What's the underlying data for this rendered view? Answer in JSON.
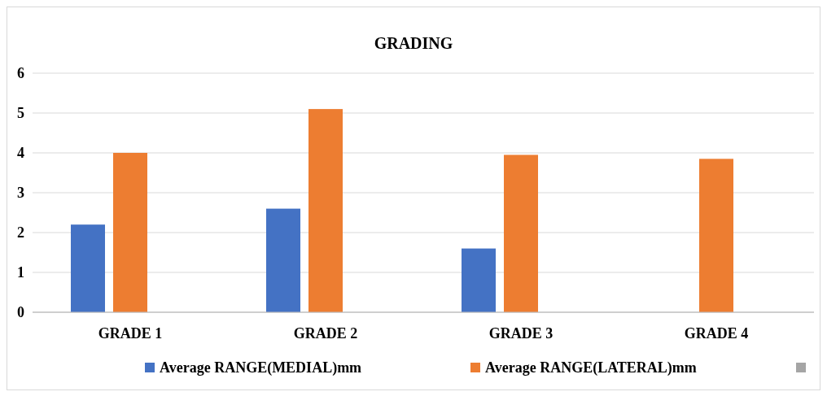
{
  "chart_data": {
    "type": "bar",
    "title": "GRADING",
    "categories": [
      "GRADE 1",
      "GRADE 2",
      "GRADE 3",
      "GRADE 4"
    ],
    "series": [
      {
        "name": "Average RANGE(MEDIAL)mm",
        "color": "#4472c4",
        "values": [
          2.2,
          2.6,
          1.6,
          null
        ]
      },
      {
        "name": "Average RANGE(LATERAL)mm",
        "color": "#ed7d31",
        "values": [
          4.0,
          5.1,
          3.95,
          3.85
        ]
      },
      {
        "color": "#a5a5a5",
        "values": [
          null,
          null,
          null,
          null
        ]
      }
    ],
    "ylim": [
      0,
      6
    ],
    "yticks": [
      0,
      1,
      2,
      3,
      4,
      5,
      6
    ],
    "grid": "y",
    "legend": "bottom"
  }
}
